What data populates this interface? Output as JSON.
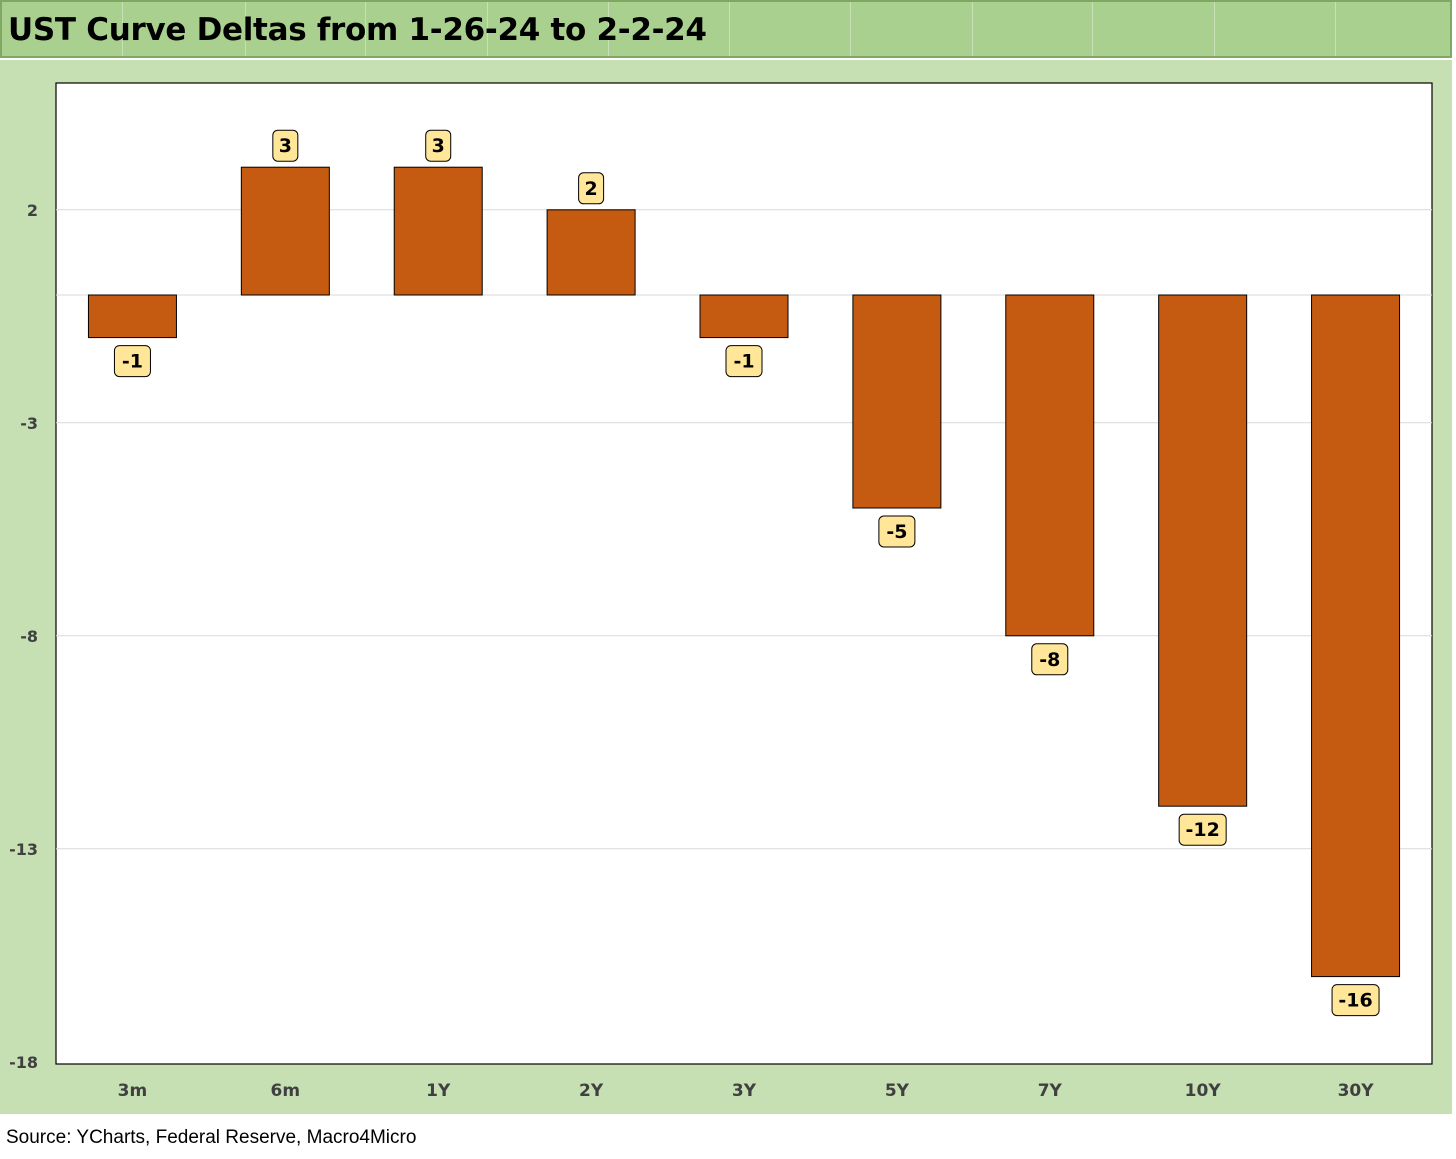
{
  "title": "UST Curve Deltas from 1-26-24 to 2-2-24",
  "source": "Source: YCharts, Federal Reserve, Macro4Micro",
  "colors": {
    "bar": "#c55a11",
    "title_bg": "#a9d08e",
    "chart_bg": "#c6e0b4",
    "label_bg": "#ffe699"
  },
  "chart_data": {
    "type": "bar",
    "categories": [
      "3m",
      "6m",
      "1Y",
      "2Y",
      "3Y",
      "5Y",
      "7Y",
      "10Y",
      "30Y"
    ],
    "values": [
      -1,
      3,
      3,
      2,
      -1,
      -5,
      -8,
      -12,
      -16
    ],
    "title": "UST Curve Deltas from 1-26-24 to 2-2-24",
    "xlabel": "",
    "ylabel": "",
    "ylim": [
      -18,
      5
    ],
    "yticks": [
      2,
      -3,
      -8,
      -13,
      -18
    ],
    "grid": true,
    "legend": "none"
  }
}
